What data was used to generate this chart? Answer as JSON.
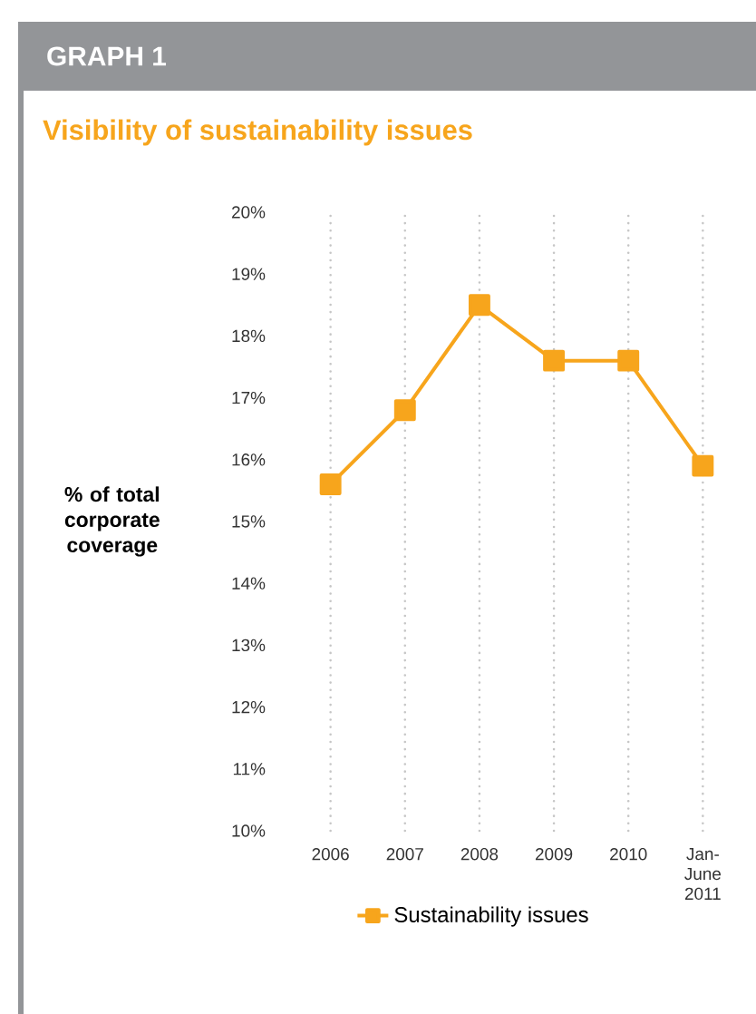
{
  "chart_data": {
    "type": "line",
    "title": "Visibility of sustainability issues",
    "annotations": [
      "GRAPH 1"
    ],
    "ylabel": "% of total corporate coverage",
    "categories": [
      "2006",
      "2007",
      "2008",
      "2009",
      "2010",
      "Jan-June 2011"
    ],
    "series": [
      {
        "name": "Sustainability issues",
        "color": "#f7a51c",
        "values": [
          15.6,
          16.8,
          18.5,
          17.6,
          17.6,
          15.9
        ]
      }
    ],
    "ylim": [
      10,
      20
    ],
    "yticks": [
      {
        "value": 10,
        "label": "10%"
      },
      {
        "value": 11,
        "label": "11%"
      },
      {
        "value": 12,
        "label": "12%"
      },
      {
        "value": 13,
        "label": "13%"
      },
      {
        "value": 14,
        "label": "14%"
      },
      {
        "value": 15,
        "label": "15%"
      },
      {
        "value": 16,
        "label": "16%"
      },
      {
        "value": 17,
        "label": "17%"
      },
      {
        "value": 18,
        "label": "18%"
      },
      {
        "value": 19,
        "label": "19%"
      },
      {
        "value": 20,
        "label": "20%"
      }
    ],
    "grid": "x",
    "legend": "bottom",
    "marker": "square",
    "line_style": "solid"
  }
}
